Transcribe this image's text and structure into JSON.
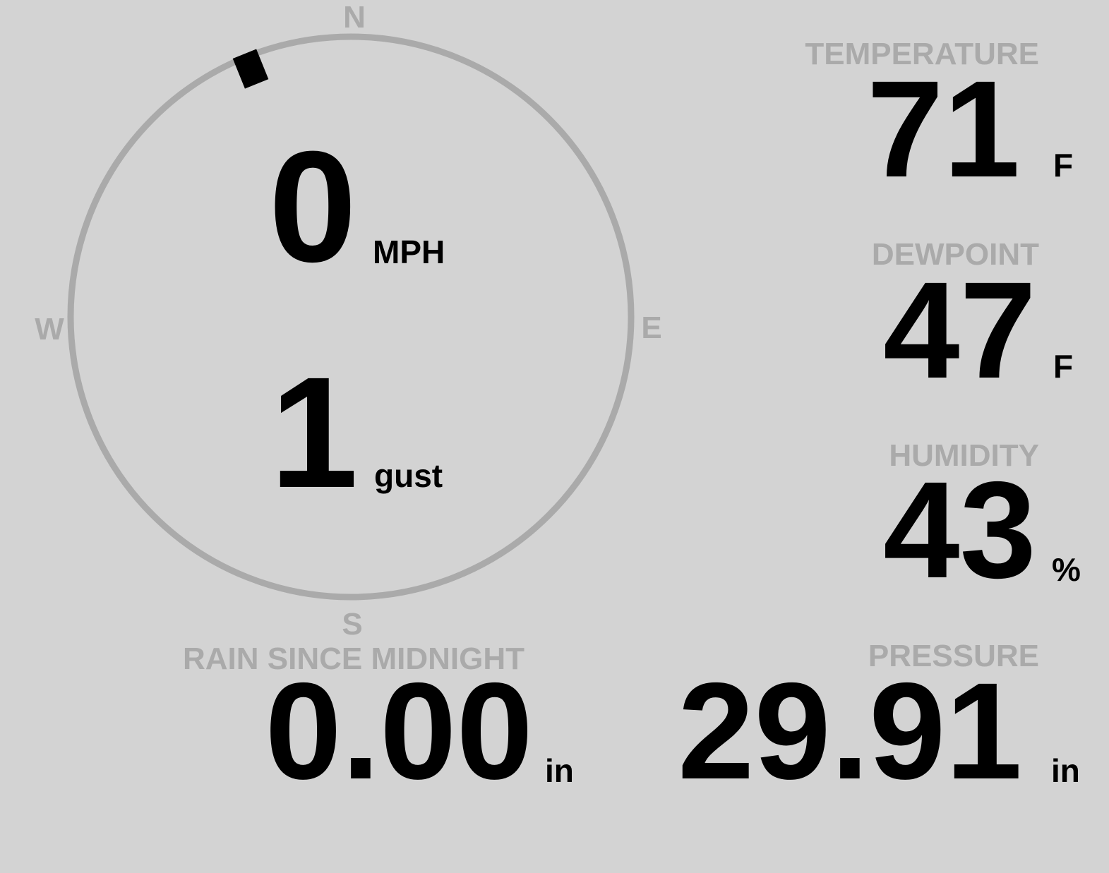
{
  "colors": {
    "background": "#d3d3d3",
    "label": "#aaaaaa",
    "value": "#000000",
    "compass_ring": "#aaaaaa",
    "wind_marker": "#000000"
  },
  "compass": {
    "cardinals": {
      "north": "N",
      "east": "E",
      "south": "S",
      "west": "W"
    },
    "wind_direction_deg": 338,
    "wind_speed": "0",
    "wind_speed_unit": "MPH",
    "gust": "1",
    "gust_unit": "gust"
  },
  "temperature": {
    "label": "TEMPERATURE",
    "value": "71",
    "unit": "F"
  },
  "dewpoint": {
    "label": "DEWPOINT",
    "value": "47",
    "unit": "F"
  },
  "humidity": {
    "label": "HUMIDITY",
    "value": "43",
    "unit": "%"
  },
  "rain": {
    "label": "RAIN SINCE MIDNIGHT",
    "value": "0.00",
    "unit": "in"
  },
  "pressure": {
    "label": "PRESSURE",
    "value": "29.91",
    "unit": "in"
  }
}
